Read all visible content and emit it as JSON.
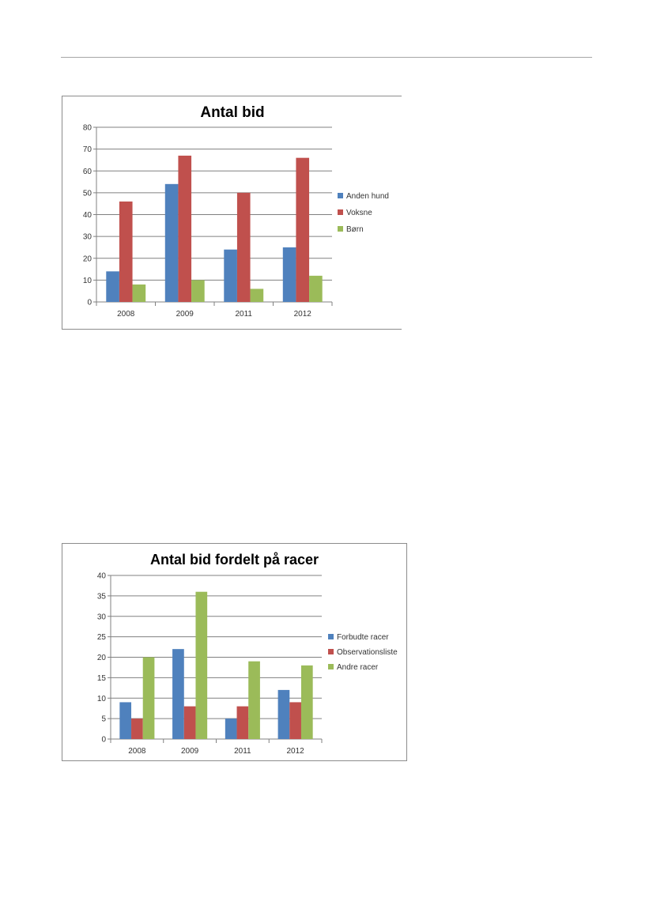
{
  "chart_data": [
    {
      "type": "bar",
      "title": "Antal bid",
      "categories": [
        "2008",
        "2009",
        "2011",
        "2012"
      ],
      "series": [
        {
          "name": "Anden hund",
          "color": "#4f81bd",
          "values": [
            14,
            54,
            24,
            25
          ]
        },
        {
          "name": "Voksne",
          "color": "#c0504d",
          "values": [
            46,
            67,
            50,
            66
          ]
        },
        {
          "name": "Børn",
          "color": "#9bbb59",
          "values": [
            8,
            10,
            6,
            12
          ]
        }
      ],
      "ylim": [
        0,
        80
      ],
      "yticks": [
        0,
        10,
        20,
        30,
        40,
        50,
        60,
        70,
        80
      ],
      "grid": true,
      "legend": "right"
    },
    {
      "type": "bar",
      "title": "Antal bid fordelt på racer",
      "categories": [
        "2008",
        "2009",
        "2011",
        "2012"
      ],
      "series": [
        {
          "name": "Forbudte racer",
          "color": "#4f81bd",
          "values": [
            9,
            22,
            5,
            12
          ]
        },
        {
          "name": "Observationsliste",
          "color": "#c0504d",
          "values": [
            5,
            8,
            8,
            9
          ]
        },
        {
          "name": "Andre racer",
          "color": "#9bbb59",
          "values": [
            20,
            36,
            19,
            18
          ]
        }
      ],
      "ylim": [
        0,
        40
      ],
      "yticks": [
        0,
        5,
        10,
        15,
        20,
        25,
        30,
        35,
        40
      ],
      "grid": true,
      "legend": "right"
    }
  ]
}
